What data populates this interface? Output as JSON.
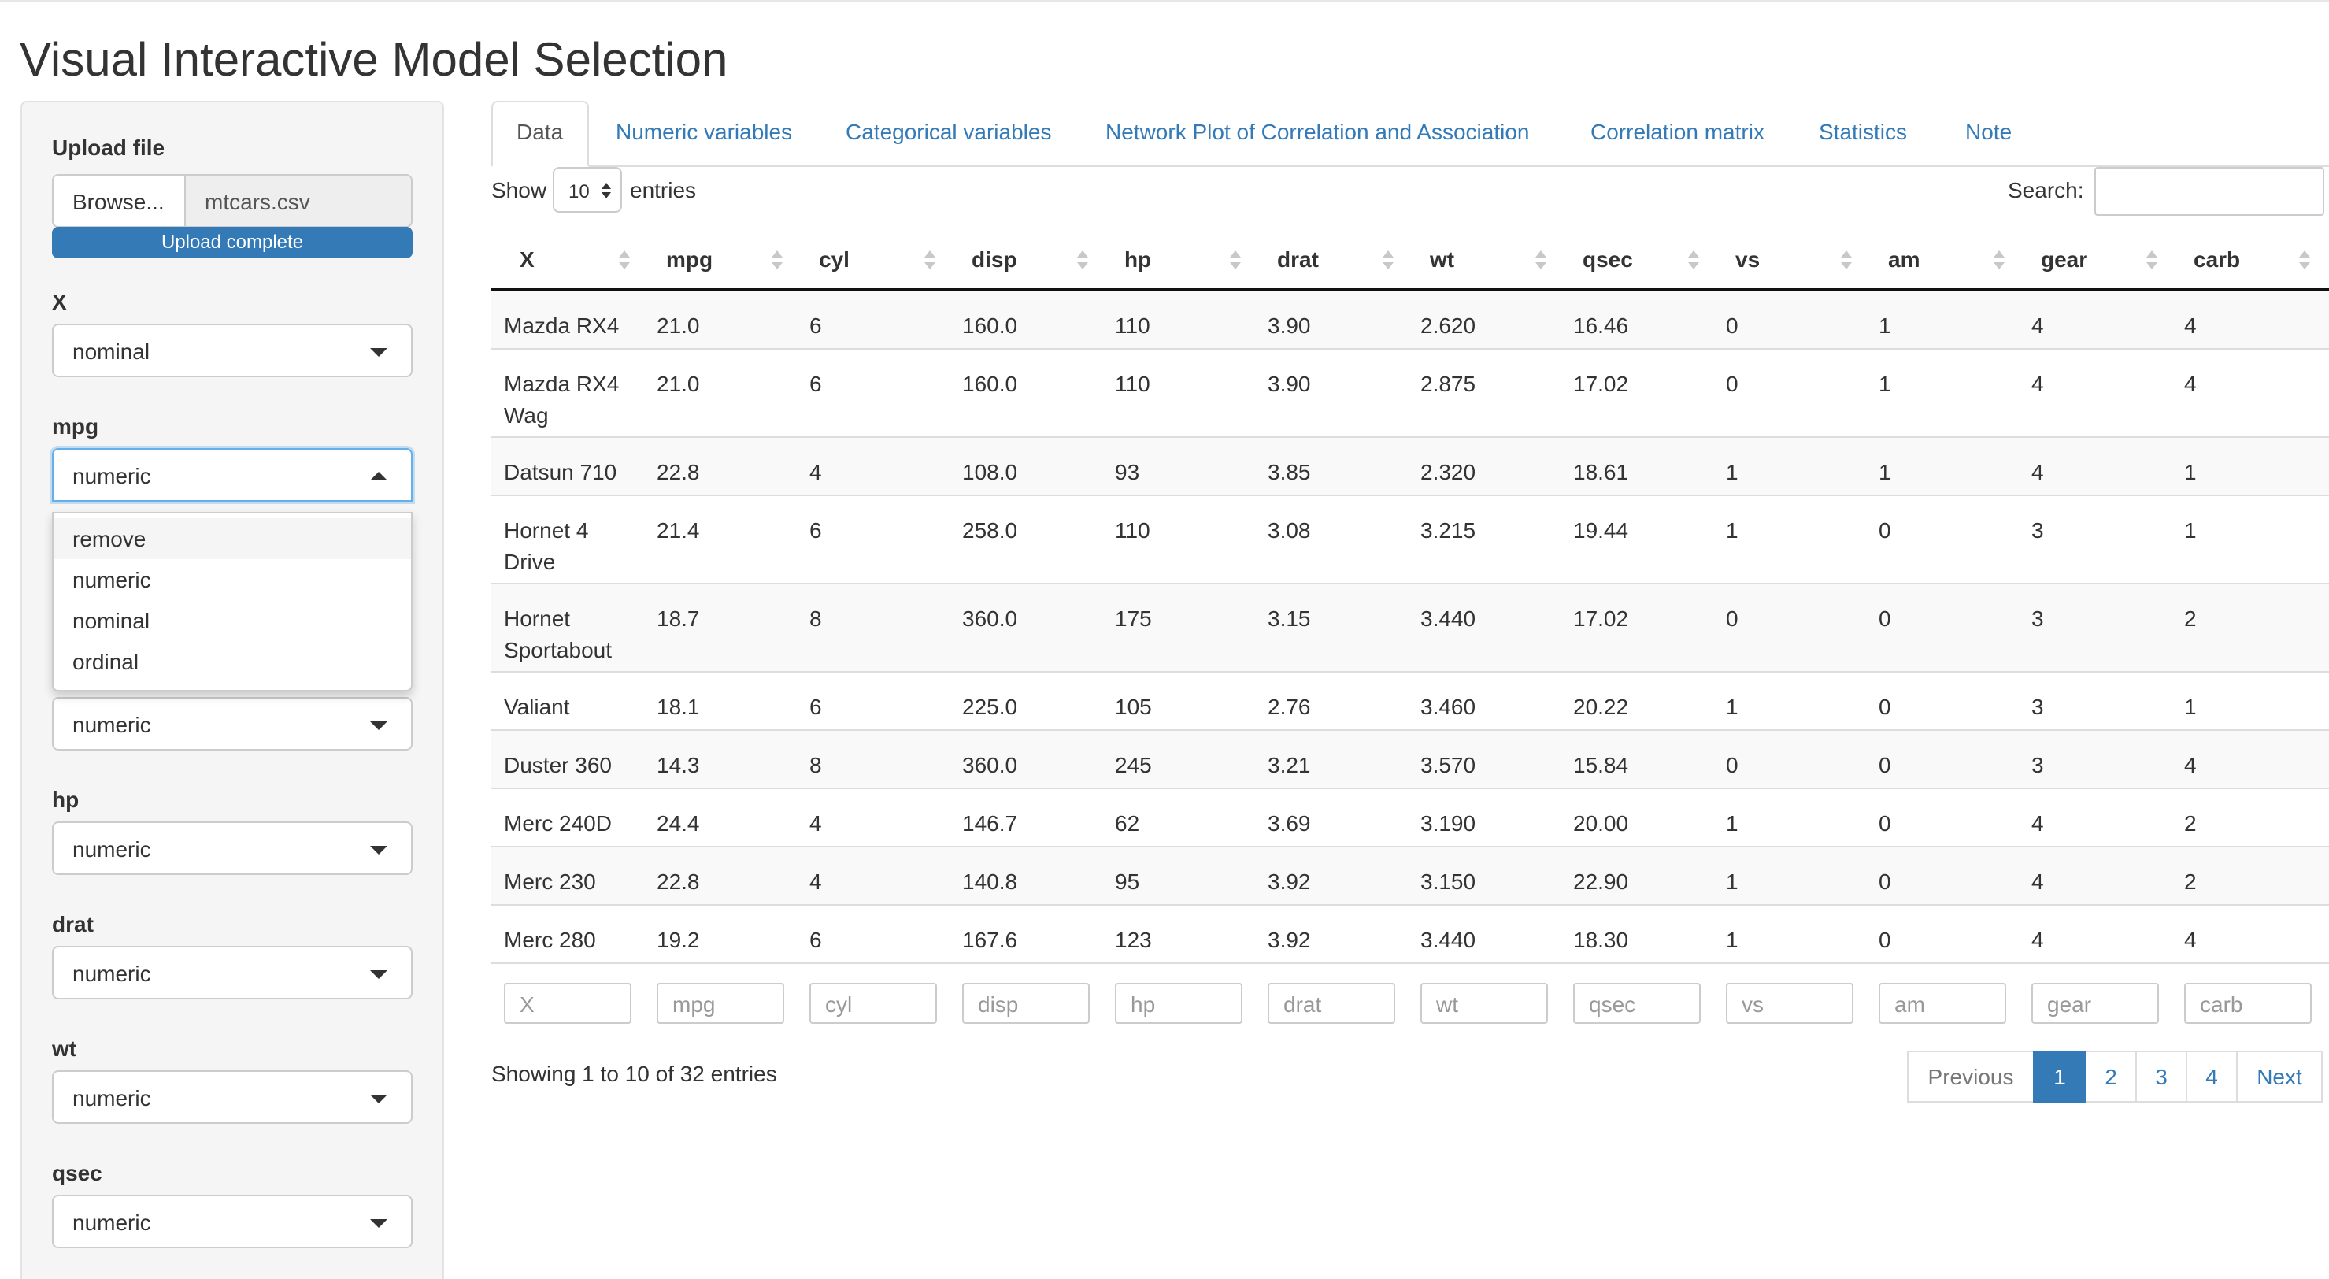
{
  "app": {
    "title": "Visual Interactive Model Selection"
  },
  "sidebar": {
    "upload": {
      "label": "Upload file",
      "browse_label": "Browse...",
      "file_name": "mtcars.csv",
      "progress_text": "Upload complete",
      "progress_percent": 100
    },
    "variables": [
      {
        "name": "X",
        "value": "nominal"
      },
      {
        "name": "mpg",
        "value": "numeric"
      },
      {
        "name": "",
        "value": "numeric"
      },
      {
        "name": "hp",
        "value": "numeric"
      },
      {
        "name": "drat",
        "value": "numeric"
      },
      {
        "name": "wt",
        "value": "numeric"
      },
      {
        "name": "qsec",
        "value": "numeric"
      }
    ],
    "dropdown_options": [
      "remove",
      "numeric",
      "nominal",
      "ordinal"
    ]
  },
  "tabs": [
    "Data",
    "Numeric variables",
    "Categorical variables",
    "Network Plot of Correlation and Association",
    "Correlation matrix",
    "Statistics",
    "Note"
  ],
  "table_controls": {
    "show_label": "Show",
    "length_value": "10",
    "entries_label": "entries",
    "search_label": "Search:"
  },
  "table": {
    "columns": [
      "X",
      "mpg",
      "cyl",
      "disp",
      "hp",
      "drat",
      "wt",
      "qsec",
      "vs",
      "am",
      "gear",
      "carb"
    ],
    "rows": [
      [
        "Mazda RX4",
        "21.0",
        "6",
        "160.0",
        "110",
        "3.90",
        "2.620",
        "16.46",
        "0",
        "1",
        "4",
        "4"
      ],
      [
        "Mazda RX4 Wag",
        "21.0",
        "6",
        "160.0",
        "110",
        "3.90",
        "2.875",
        "17.02",
        "0",
        "1",
        "4",
        "4"
      ],
      [
        "Datsun 710",
        "22.8",
        "4",
        "108.0",
        "93",
        "3.85",
        "2.320",
        "18.61",
        "1",
        "1",
        "4",
        "1"
      ],
      [
        "Hornet 4 Drive",
        "21.4",
        "6",
        "258.0",
        "110",
        "3.08",
        "3.215",
        "19.44",
        "1",
        "0",
        "3",
        "1"
      ],
      [
        "Hornet Sportabout",
        "18.7",
        "8",
        "360.0",
        "175",
        "3.15",
        "3.440",
        "17.02",
        "0",
        "0",
        "3",
        "2"
      ],
      [
        "Valiant",
        "18.1",
        "6",
        "225.0",
        "105",
        "2.76",
        "3.460",
        "20.22",
        "1",
        "0",
        "3",
        "1"
      ],
      [
        "Duster 360",
        "14.3",
        "8",
        "360.0",
        "245",
        "3.21",
        "3.570",
        "15.84",
        "0",
        "0",
        "3",
        "4"
      ],
      [
        "Merc 240D",
        "24.4",
        "4",
        "146.7",
        "62",
        "3.69",
        "3.190",
        "20.00",
        "1",
        "0",
        "4",
        "2"
      ],
      [
        "Merc 230",
        "22.8",
        "4",
        "140.8",
        "95",
        "3.92",
        "3.150",
        "22.90",
        "1",
        "0",
        "4",
        "2"
      ],
      [
        "Merc 280",
        "19.2",
        "6",
        "167.6",
        "123",
        "3.92",
        "3.440",
        "18.30",
        "1",
        "0",
        "4",
        "4"
      ]
    ],
    "filter_placeholders": [
      "X",
      "mpg",
      "cyl",
      "disp",
      "hp",
      "drat",
      "wt",
      "qsec",
      "vs",
      "am",
      "gear",
      "carb"
    ]
  },
  "footer": {
    "info": "Showing 1 to 10 of 32 entries",
    "pagination": {
      "previous": "Previous",
      "pages": [
        "1",
        "2",
        "3",
        "4"
      ],
      "next": "Next",
      "current": "1"
    }
  },
  "colors": {
    "link": "#337ab7",
    "primary": "#337ab7",
    "text": "#333333",
    "border": "#dddddd"
  }
}
